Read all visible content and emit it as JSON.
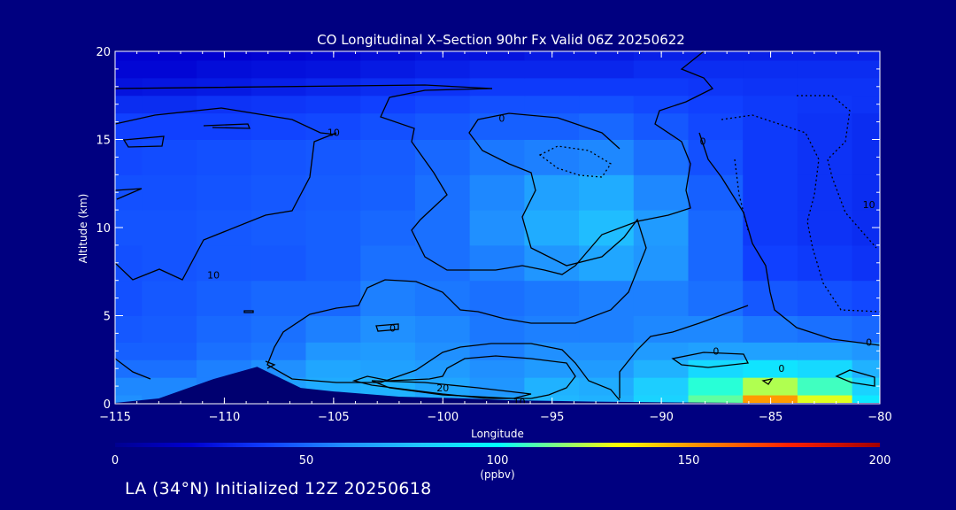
{
  "chart_data": {
    "type": "heatmap",
    "title": "CO Longitudinal X–Section 90hr  Fx Valid 06Z 20250622",
    "xlabel": "Longitude",
    "ylabel": "Altitude (km)",
    "xlim": [
      -115,
      -80
    ],
    "ylim": [
      0,
      20
    ],
    "x_ticks": [
      {
        "value": -115,
        "label": "−115"
      },
      {
        "value": -110,
        "label": "−110"
      },
      {
        "value": -105,
        "label": "−105"
      },
      {
        "value": -100,
        "label": "−100"
      },
      {
        "value": -95,
        "label": "−95"
      },
      {
        "value": -90,
        "label": "−90"
      },
      {
        "value": -85,
        "label": "−85"
      },
      {
        "value": -80,
        "label": "−80"
      }
    ],
    "y_ticks": [
      {
        "value": 0,
        "label": "0"
      },
      {
        "value": 5,
        "label": "5"
      },
      {
        "value": 10,
        "label": "10"
      },
      {
        "value": 15,
        "label": "15"
      },
      {
        "value": 20,
        "label": "20"
      }
    ],
    "colorbar": {
      "min": 0,
      "max": 200,
      "unit": "(ppbv)",
      "ticks": [
        {
          "value": 0,
          "label": "0"
        },
        {
          "value": 50,
          "label": "50"
        },
        {
          "value": 100,
          "label": "100"
        },
        {
          "value": 150,
          "label": "150"
        },
        {
          "value": 200,
          "label": "200"
        }
      ]
    },
    "x": [
      -115,
      -112.5,
      -110,
      -107.5,
      -105,
      -102.5,
      -100,
      -97.5,
      -95,
      -92.5,
      -90,
      -87.5,
      -85,
      -82.5,
      -80
    ],
    "y": [
      0,
      1,
      2,
      3,
      4,
      6,
      8,
      10,
      12,
      14,
      16,
      17,
      18,
      19,
      20
    ],
    "z": [
      [
        60,
        58,
        56,
        58,
        72,
        74,
        70,
        66,
        74,
        72,
        84,
        112,
        150,
        128,
        92
      ],
      [
        58,
        58,
        56,
        66,
        70,
        72,
        68,
        62,
        72,
        70,
        82,
        105,
        122,
        108,
        84
      ],
      [
        52,
        52,
        56,
        60,
        68,
        66,
        64,
        60,
        64,
        64,
        72,
        86,
        90,
        86,
        72
      ],
      [
        48,
        48,
        52,
        54,
        62,
        64,
        60,
        56,
        60,
        60,
        64,
        66,
        66,
        66,
        62
      ],
      [
        46,
        47,
        50,
        52,
        56,
        60,
        58,
        54,
        56,
        56,
        58,
        58,
        54,
        52,
        50
      ],
      [
        44,
        46,
        48,
        50,
        50,
        56,
        54,
        52,
        54,
        56,
        56,
        52,
        46,
        44,
        42
      ],
      [
        44,
        45,
        46,
        46,
        48,
        52,
        52,
        56,
        62,
        68,
        62,
        50,
        40,
        38,
        36
      ],
      [
        45,
        45,
        46,
        47,
        48,
        50,
        52,
        60,
        70,
        76,
        64,
        50,
        38,
        36,
        34
      ],
      [
        44,
        44,
        45,
        46,
        47,
        48,
        52,
        58,
        66,
        70,
        58,
        48,
        38,
        36,
        34
      ],
      [
        42,
        43,
        44,
        45,
        46,
        47,
        50,
        54,
        56,
        58,
        52,
        44,
        38,
        36,
        34
      ],
      [
        40,
        40,
        40,
        41,
        42,
        44,
        46,
        48,
        48,
        50,
        46,
        42,
        38,
        36,
        34
      ],
      [
        34,
        34,
        36,
        37,
        38,
        40,
        42,
        44,
        44,
        44,
        42,
        40,
        38,
        37,
        36
      ],
      [
        26,
        27,
        28,
        30,
        32,
        34,
        36,
        38,
        38,
        38,
        38,
        37,
        36,
        36,
        36
      ],
      [
        22,
        22,
        24,
        25,
        26,
        28,
        30,
        32,
        32,
        32,
        34,
        34,
        34,
        34,
        34
      ],
      [
        20,
        20,
        20,
        21,
        22,
        24,
        26,
        26,
        28,
        28,
        30,
        30,
        30,
        30,
        30
      ]
    ],
    "terrain": [
      {
        "x": -115,
        "z": 0.05
      },
      {
        "x": -113,
        "z": 0.3
      },
      {
        "x": -110.5,
        "z": 1.4
      },
      {
        "x": -108.5,
        "z": 2.1
      },
      {
        "x": -107.5,
        "z": 1.5
      },
      {
        "x": -106.5,
        "z": 0.9
      },
      {
        "x": -105,
        "z": 0.7
      },
      {
        "x": -102,
        "z": 0.4
      },
      {
        "x": -99,
        "z": 0.3
      },
      {
        "x": -97,
        "z": 0.2
      },
      {
        "x": -93,
        "z": 0.12
      },
      {
        "x": -90,
        "z": 0.08
      },
      {
        "x": -86,
        "z": 0.05
      },
      {
        "x": -80,
        "z": 0.05
      }
    ],
    "contour_labels": [
      {
        "text": "10",
        "lon": -110.5,
        "alt": 7.3
      },
      {
        "text": "10",
        "lon": -105,
        "alt": 15.4
      },
      {
        "text": "0",
        "lon": -97.3,
        "alt": 16.2
      },
      {
        "text": "0",
        "lon": -88.1,
        "alt": 14.9
      },
      {
        "text": "10",
        "lon": -80.5,
        "alt": 11.3
      },
      {
        "text": "0",
        "lon": -102.3,
        "alt": 4.3
      },
      {
        "text": "0",
        "lon": -87.5,
        "alt": 3.0
      },
      {
        "text": "0",
        "lon": -84.5,
        "alt": 2.0
      },
      {
        "text": "0",
        "lon": -80.5,
        "alt": 3.5
      },
      {
        "text": "20",
        "lon": -100,
        "alt": 0.9
      },
      {
        "text": "10",
        "lon": -96.5,
        "alt": 0.1
      }
    ]
  },
  "footer": {
    "text": "LA (34°N) Initialized 12Z 20250618"
  }
}
